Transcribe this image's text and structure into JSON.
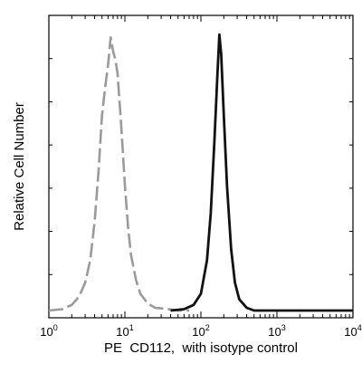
{
  "chart_data": {
    "type": "line",
    "title": "",
    "xlabel": "PE  CD112,  with isotype control",
    "ylabel": "Relative Cell Number",
    "xscale": "log",
    "xlim": [
      1,
      10000
    ],
    "ylim": [
      0,
      1
    ],
    "xticks": [
      {
        "base": "10",
        "exp": "0"
      },
      {
        "base": "10",
        "exp": "1"
      },
      {
        "base": "10",
        "exp": "2"
      },
      {
        "base": "10",
        "exp": "3"
      },
      {
        "base": "10",
        "exp": "4"
      }
    ],
    "grid": false,
    "legend": "none",
    "series": [
      {
        "style": "dashed",
        "color": "#9a9a9a",
        "points": [
          [
            1.0,
            0.0
          ],
          [
            1.5,
            0.005
          ],
          [
            2.0,
            0.02
          ],
          [
            2.5,
            0.05
          ],
          [
            3.0,
            0.1
          ],
          [
            3.5,
            0.18
          ],
          [
            4.0,
            0.32
          ],
          [
            4.5,
            0.5
          ],
          [
            5.0,
            0.7
          ],
          [
            5.5,
            0.8
          ],
          [
            6.0,
            0.88
          ],
          [
            6.5,
            0.98
          ],
          [
            7.0,
            0.93
          ],
          [
            7.5,
            0.9
          ],
          [
            8.0,
            0.85
          ],
          [
            9.0,
            0.65
          ],
          [
            10.0,
            0.45
          ],
          [
            11.0,
            0.3
          ],
          [
            12.0,
            0.2
          ],
          [
            14.0,
            0.11
          ],
          [
            16.0,
            0.06
          ],
          [
            20.0,
            0.025
          ],
          [
            25.0,
            0.01
          ],
          [
            35.0,
            0.006
          ],
          [
            50.0,
            0.0
          ],
          [
            70.0,
            0.0
          ]
        ]
      },
      {
        "style": "solid",
        "color": "#111111",
        "points": [
          [
            40.0,
            0.0
          ],
          [
            60.0,
            0.005
          ],
          [
            80.0,
            0.02
          ],
          [
            100.0,
            0.06
          ],
          [
            120.0,
            0.18
          ],
          [
            135.0,
            0.35
          ],
          [
            150.0,
            0.6
          ],
          [
            165.0,
            0.85
          ],
          [
            175.0,
            0.99
          ],
          [
            185.0,
            0.92
          ],
          [
            200.0,
            0.7
          ],
          [
            220.0,
            0.45
          ],
          [
            250.0,
            0.22
          ],
          [
            280.0,
            0.1
          ],
          [
            320.0,
            0.04
          ],
          [
            400.0,
            0.01
          ],
          [
            500.0,
            0.0
          ],
          [
            1000.0,
            0.0
          ],
          [
            10000.0,
            0.0
          ]
        ]
      }
    ]
  }
}
